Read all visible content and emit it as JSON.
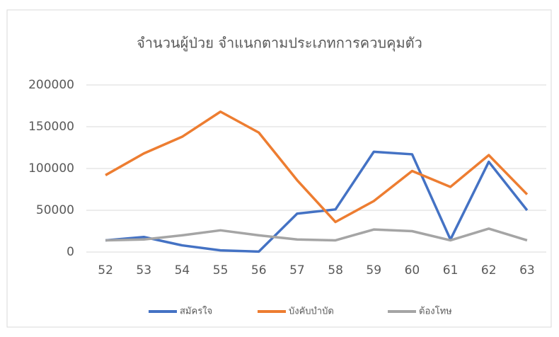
{
  "chart_data": {
    "type": "line",
    "title": "จำนวนผู้ป่วย จำแนกตามประเภทการควบคุมตัว",
    "categories": [
      "52",
      "53",
      "54",
      "55",
      "56",
      "57",
      "58",
      "59",
      "60",
      "61",
      "62",
      "63"
    ],
    "series": [
      {
        "name": "สมัครใจ",
        "color": "#4472c4",
        "values": [
          14000,
          18000,
          8000,
          2000,
          500,
          46000,
          51000,
          120000,
          117000,
          15000,
          108000,
          50000
        ]
      },
      {
        "name": "บังคับบำบัด",
        "color": "#ed7d31",
        "values": [
          92000,
          118000,
          138000,
          168000,
          143000,
          86000,
          36000,
          61000,
          97000,
          78000,
          116000,
          69000
        ]
      },
      {
        "name": "ต้องโทษ",
        "color": "#a5a5a5",
        "values": [
          14000,
          15000,
          20000,
          26000,
          20000,
          15000,
          14000,
          27000,
          25000,
          14000,
          28000,
          14000
        ]
      }
    ],
    "ylim": [
      0,
      200000
    ],
    "yticks": [
      0,
      50000,
      100000,
      150000,
      200000
    ],
    "grid": true,
    "legend": "bottom"
  }
}
